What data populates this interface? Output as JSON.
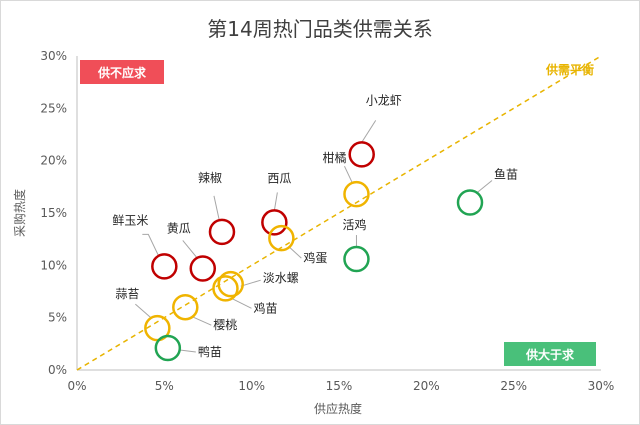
{
  "chart_data": {
    "type": "scatter",
    "title": "第14周热门品类供需关系",
    "xlabel": "供应热度",
    "ylabel": "采购热度",
    "xlim": [
      0,
      30
    ],
    "ylim": [
      0,
      30
    ],
    "x_ticks": [
      "0%",
      "5%",
      "10%",
      "15%",
      "20%",
      "25%",
      "30%"
    ],
    "y_ticks": [
      "0%",
      "5%",
      "10%",
      "15%",
      "20%",
      "25%",
      "30%"
    ],
    "grid": false,
    "diagonal_label": "供需平衡",
    "quadrant_labels": {
      "top_left": "供不应求",
      "bottom_right": "供大于求"
    },
    "colors": {
      "demand": "#c00000",
      "balanced": "#f0b400",
      "supply": "#21a453",
      "diagonal": "#e8b400",
      "badge_red": "#f04e58",
      "badge_green": "#49c07a"
    },
    "points": [
      {
        "name": "小龙虾",
        "x": 16.3,
        "y": 20.6,
        "group": "demand"
      },
      {
        "name": "辣椒",
        "x": 8.3,
        "y": 13.2,
        "group": "demand"
      },
      {
        "name": "西瓜",
        "x": 11.3,
        "y": 14.1,
        "group": "demand"
      },
      {
        "name": "黄瓜",
        "x": 7.2,
        "y": 9.7,
        "group": "demand"
      },
      {
        "name": "鲜玉米",
        "x": 5.0,
        "y": 9.9,
        "group": "demand"
      },
      {
        "name": "柑橘",
        "x": 16.0,
        "y": 16.8,
        "group": "balanced"
      },
      {
        "name": "鸡蛋",
        "x": 11.7,
        "y": 12.6,
        "group": "balanced"
      },
      {
        "name": "淡水螺",
        "x": 8.8,
        "y": 8.2,
        "group": "balanced"
      },
      {
        "name": "鸡苗",
        "x": 8.5,
        "y": 7.8,
        "group": "balanced"
      },
      {
        "name": "樱桃",
        "x": 6.2,
        "y": 6.0,
        "group": "balanced"
      },
      {
        "name": "蒜苔",
        "x": 4.6,
        "y": 4.0,
        "group": "balanced"
      },
      {
        "name": "鱼苗",
        "x": 22.5,
        "y": 16.0,
        "group": "supply"
      },
      {
        "name": "活鸡",
        "x": 16.0,
        "y": 10.6,
        "group": "supply"
      },
      {
        "name": "鸭苗",
        "x": 5.2,
        "y": 2.1,
        "group": "supply"
      }
    ]
  }
}
